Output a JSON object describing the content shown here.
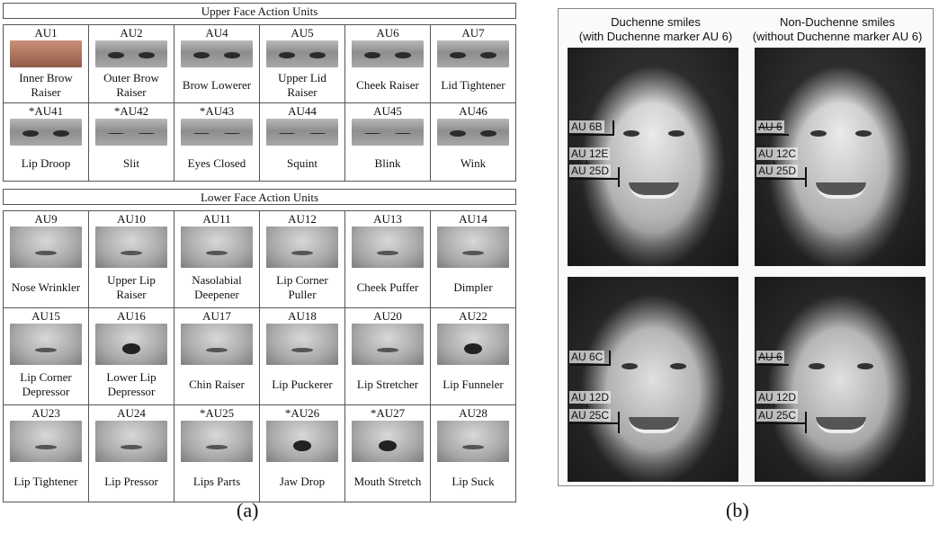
{
  "panel_a": {
    "upper_title": "Upper Face Action Units",
    "lower_title": "Lower Face Action Units",
    "label": "(a)",
    "upper_rows": [
      [
        {
          "code": "AU1",
          "name": "Inner Brow Raiser",
          "thumb": "color"
        },
        {
          "code": "AU2",
          "name": "Outer Brow Raiser",
          "thumb": "eyes"
        },
        {
          "code": "AU4",
          "name": "Brow Lowerer",
          "thumb": "eyes"
        },
        {
          "code": "AU5",
          "name": "Upper Lid Raiser",
          "thumb": "eyes"
        },
        {
          "code": "AU6",
          "name": "Cheek Raiser",
          "thumb": "eyes"
        },
        {
          "code": "AU7",
          "name": "Lid Tightener",
          "thumb": "eyes"
        }
      ],
      [
        {
          "code": "*AU41",
          "name": "Lip Droop",
          "thumb": "eyes"
        },
        {
          "code": "*AU42",
          "name": "Slit",
          "thumb": "eyes closed"
        },
        {
          "code": "*AU43",
          "name": "Eyes Closed",
          "thumb": "eyes closed"
        },
        {
          "code": "AU44",
          "name": "Squint",
          "thumb": "eyes closed"
        },
        {
          "code": "AU45",
          "name": "Blink",
          "thumb": "eyes closed"
        },
        {
          "code": "AU46",
          "name": "Wink",
          "thumb": "eyes"
        }
      ]
    ],
    "lower_rows": [
      [
        {
          "code": "AU9",
          "name": "Nose Wrinkler",
          "thumb": "face"
        },
        {
          "code": "AU10",
          "name": "Upper Lip Raiser",
          "thumb": "face"
        },
        {
          "code": "AU11",
          "name": "Nasolabial Deepener",
          "thumb": "face"
        },
        {
          "code": "AU12",
          "name": "Lip Corner Puller",
          "thumb": "face"
        },
        {
          "code": "AU13",
          "name": "Cheek Puffer",
          "thumb": "face"
        },
        {
          "code": "AU14",
          "name": "Dimpler",
          "thumb": "face"
        }
      ],
      [
        {
          "code": "AU15",
          "name": "Lip Corner Depressor",
          "thumb": "face"
        },
        {
          "code": "AU16",
          "name": "Lower Lip Depressor",
          "thumb": "face open"
        },
        {
          "code": "AU17",
          "name": "Chin Raiser",
          "thumb": "face"
        },
        {
          "code": "AU18",
          "name": "Lip Puckerer",
          "thumb": "face"
        },
        {
          "code": "AU20",
          "name": "Lip Stretcher",
          "thumb": "face"
        },
        {
          "code": "AU22",
          "name": "Lip Funneler",
          "thumb": "face open"
        }
      ],
      [
        {
          "code": "AU23",
          "name": "Lip Tightener",
          "thumb": "face"
        },
        {
          "code": "AU24",
          "name": "Lip Pressor",
          "thumb": "face"
        },
        {
          "code": "*AU25",
          "name": "Lips Parts",
          "thumb": "face"
        },
        {
          "code": "*AU26",
          "name": "Jaw Drop",
          "thumb": "face open"
        },
        {
          "code": "*AU27",
          "name": "Mouth Stretch",
          "thumb": "face open"
        },
        {
          "code": "AU28",
          "name": "Lip Suck",
          "thumb": "face"
        }
      ]
    ]
  },
  "panel_b": {
    "label": "(b)",
    "duchenne_heading_line1": "Duchenne smiles",
    "duchenne_heading_line2": "(with Duchenne marker AU 6)",
    "non_duchenne_heading_line1": "Non-Duchenne smiles",
    "non_duchenne_heading_line2": "(without Duchenne marker AU 6)",
    "female_duchenne_tags": [
      "AU 6B",
      "AU 12E",
      "+",
      "AU 25D"
    ],
    "female_non_duchenne_tags": [
      "AU 6",
      "AU 12C",
      "+",
      "AU 25D"
    ],
    "male_duchenne_tags": [
      "AU 6C",
      "AU 12D",
      "+",
      "AU 25C"
    ],
    "male_non_duchenne_tags": [
      "AU 6",
      "AU 12D",
      "+",
      "AU 25C"
    ]
  }
}
